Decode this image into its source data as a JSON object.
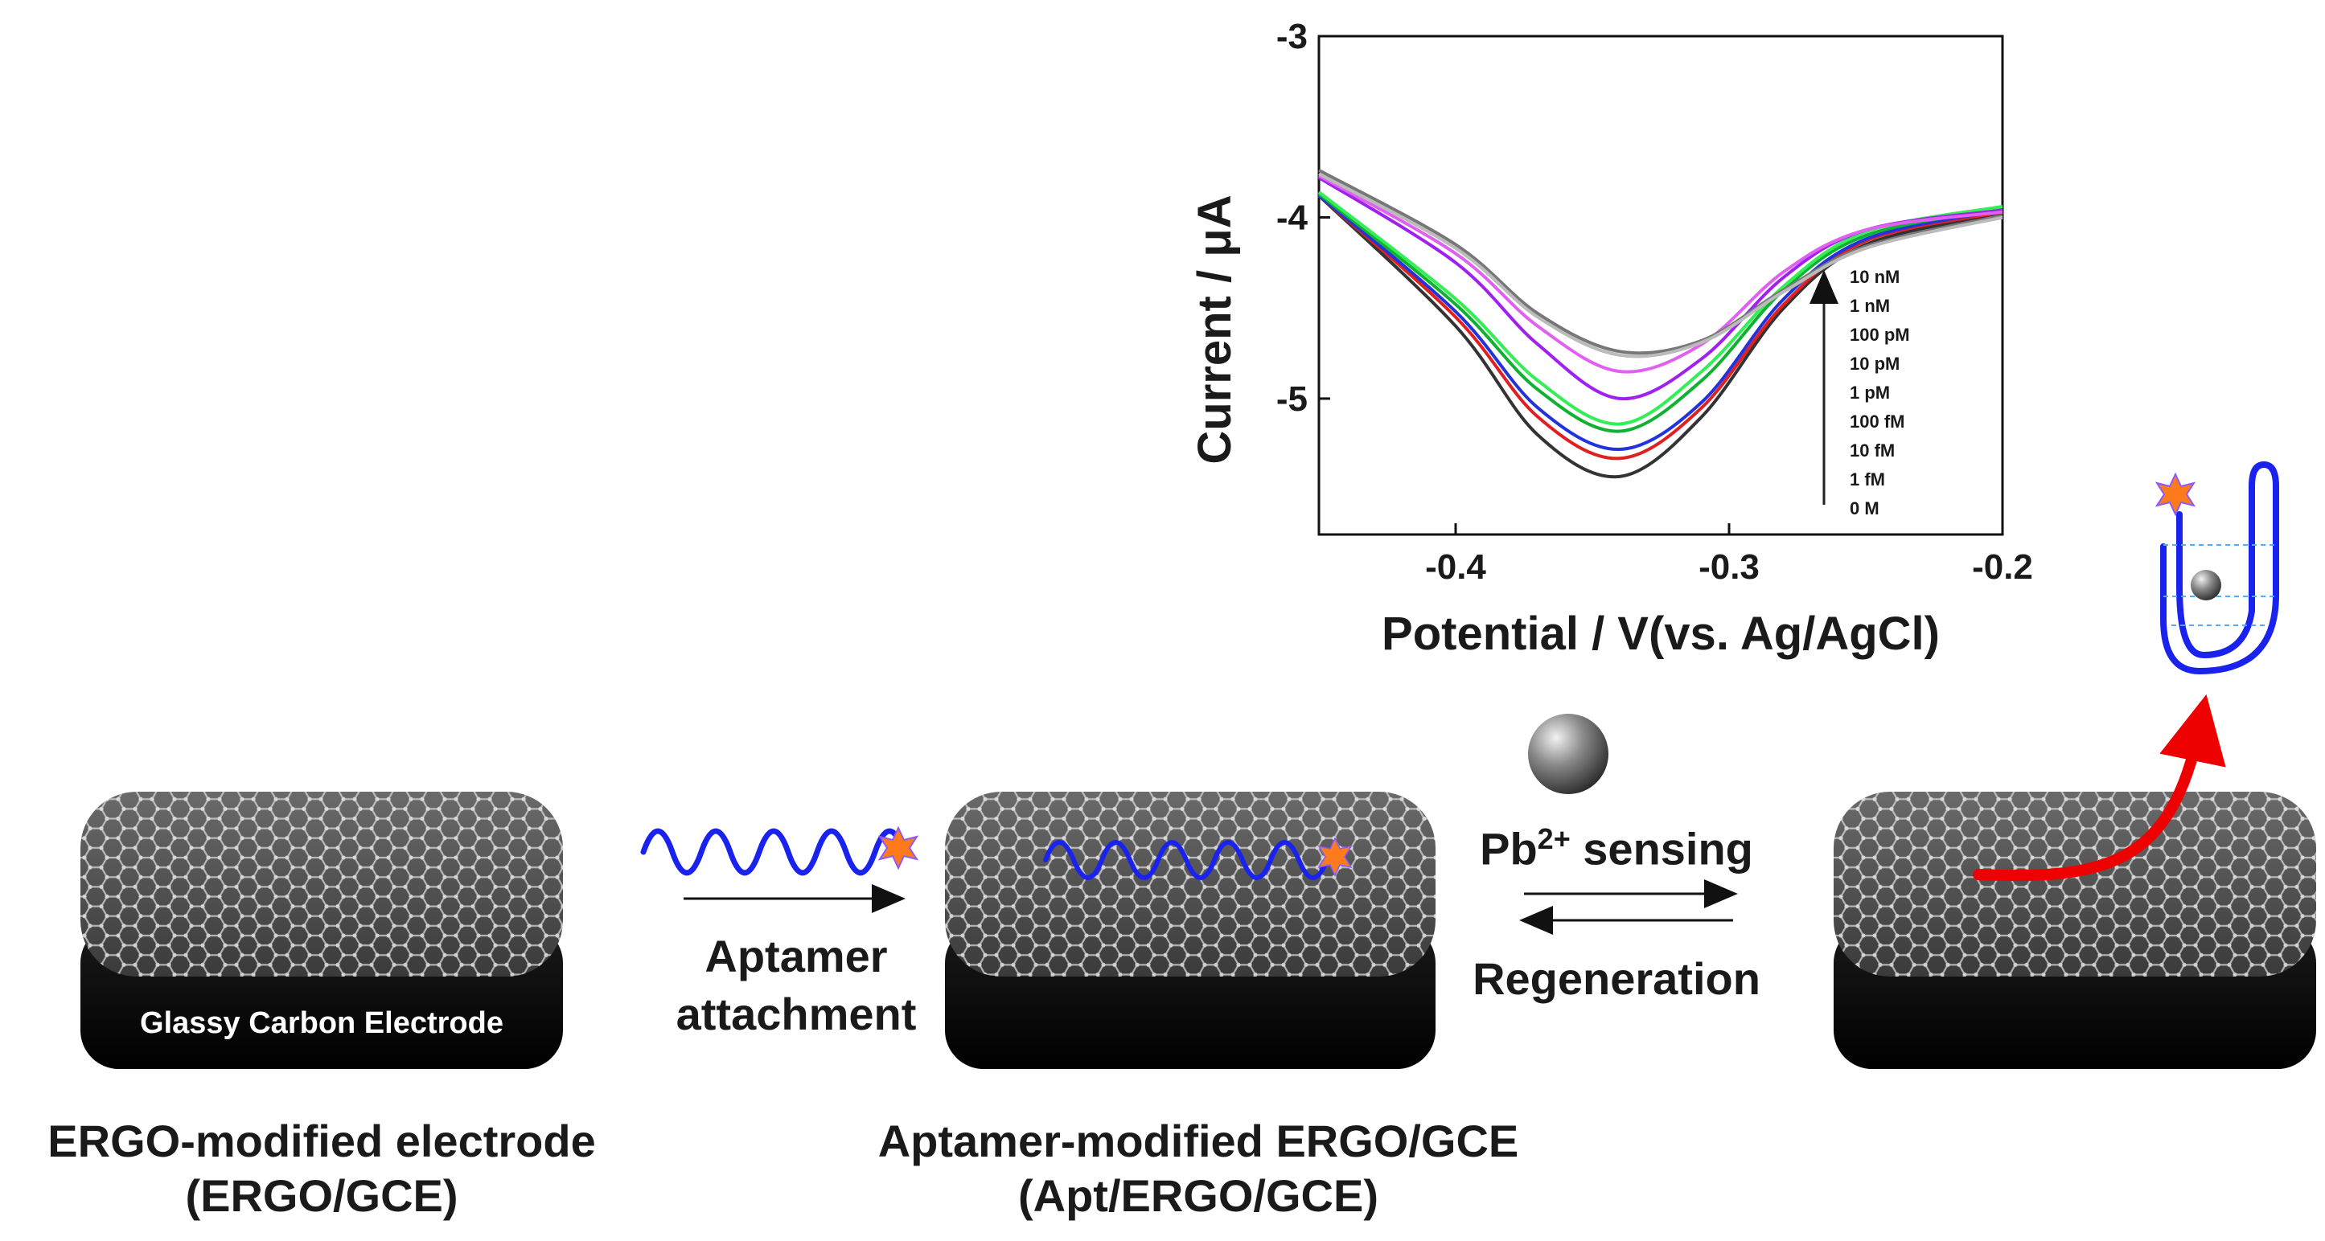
{
  "chart_data": {
    "type": "line",
    "xlabel": "Potential / V(vs. Ag/AgCl)",
    "ylabel": "Current / μA",
    "xlim": [
      -0.45,
      -0.2
    ],
    "ylim": [
      -5.75,
      -3
    ],
    "xticks": [
      -0.4,
      -0.3,
      -0.2
    ],
    "xtick_labels": [
      "-0.4",
      "-0.3",
      "-0.2"
    ],
    "yticks": [
      -3,
      -4,
      -5
    ],
    "ytick_labels": [
      "-3",
      "-4",
      "-5"
    ],
    "legend_labels": [
      "10 nM",
      "1 nM",
      "100 pM",
      "10 pM",
      "1 pM",
      "100 fM",
      "10 fM",
      "1 fM",
      "0 M"
    ],
    "series": [
      {
        "color": "#333333",
        "x": [
          -0.45,
          -0.4,
          -0.37,
          -0.34,
          -0.31,
          -0.28,
          -0.25,
          -0.2
        ],
        "y": [
          -3.88,
          -4.6,
          -5.2,
          -5.43,
          -5.1,
          -4.5,
          -4.15,
          -3.98
        ]
      },
      {
        "color": "#e02020",
        "x": [
          -0.45,
          -0.4,
          -0.37,
          -0.34,
          -0.31,
          -0.28,
          -0.25,
          -0.2
        ],
        "y": [
          -3.88,
          -4.55,
          -5.1,
          -5.33,
          -5.05,
          -4.48,
          -4.13,
          -3.97
        ]
      },
      {
        "color": "#2233dd",
        "x": [
          -0.45,
          -0.4,
          -0.37,
          -0.34,
          -0.31,
          -0.28,
          -0.25,
          -0.2
        ],
        "y": [
          -3.88,
          -4.52,
          -5.05,
          -5.28,
          -5.02,
          -4.45,
          -4.12,
          -3.96
        ]
      },
      {
        "color": "#10b030",
        "x": [
          -0.45,
          -0.4,
          -0.37,
          -0.34,
          -0.31,
          -0.28,
          -0.25,
          -0.2
        ],
        "y": [
          -3.87,
          -4.48,
          -4.95,
          -5.18,
          -4.9,
          -4.4,
          -4.1,
          -3.95
        ]
      },
      {
        "color": "#33ee55",
        "x": [
          -0.45,
          -0.4,
          -0.37,
          -0.34,
          -0.31,
          -0.28,
          -0.25,
          -0.2
        ],
        "y": [
          -3.86,
          -4.45,
          -4.9,
          -5.14,
          -4.85,
          -4.38,
          -4.08,
          -3.94
        ]
      },
      {
        "color": "#a020f0",
        "x": [
          -0.45,
          -0.4,
          -0.37,
          -0.34,
          -0.31,
          -0.28,
          -0.25,
          -0.2
        ],
        "y": [
          -3.78,
          -4.25,
          -4.7,
          -5.0,
          -4.78,
          -4.33,
          -4.07,
          -3.96
        ]
      },
      {
        "color": "#e060f0",
        "x": [
          -0.45,
          -0.4,
          -0.37,
          -0.34,
          -0.31,
          -0.28,
          -0.25,
          -0.2
        ],
        "y": [
          -3.77,
          -4.2,
          -4.6,
          -4.85,
          -4.7,
          -4.3,
          -4.07,
          -3.97
        ]
      },
      {
        "color": "#777777",
        "x": [
          -0.45,
          -0.4,
          -0.37,
          -0.34,
          -0.31,
          -0.28,
          -0.25,
          -0.2
        ],
        "y": [
          -3.74,
          -4.15,
          -4.53,
          -4.74,
          -4.68,
          -4.4,
          -4.16,
          -3.99
        ]
      },
      {
        "color": "#bbbbbb",
        "x": [
          -0.45,
          -0.4,
          -0.37,
          -0.34,
          -0.31,
          -0.28,
          -0.25,
          -0.2
        ],
        "y": [
          -3.76,
          -4.17,
          -4.55,
          -4.76,
          -4.69,
          -4.41,
          -4.17,
          -4.0
        ]
      }
    ]
  },
  "diagram": {
    "electrode1_label": "Glassy  Carbon  Electrode",
    "caption1_line1": "ERGO-modified electrode",
    "caption1_line2": "(ERGO/GCE)",
    "step1_line1": "Aptamer",
    "step1_line2": "attachment",
    "caption2_line1": "Aptamer-modified ERGO/GCE",
    "caption2_line2": "(Apt/ERGO/GCE)",
    "sensing_label": "Pb",
    "sensing_sup": "2+",
    "sensing_suffix": " sensing",
    "regen_label": "Regeneration",
    "colors": {
      "aptamer": "#1a22ee",
      "label_star": "#ff7a1a",
      "red_arrow": "#ee0000",
      "electrode_base": "#0a0a0a",
      "graphene_top": "#4a4a4a",
      "hairpin_dash": "#55a8ff"
    }
  }
}
